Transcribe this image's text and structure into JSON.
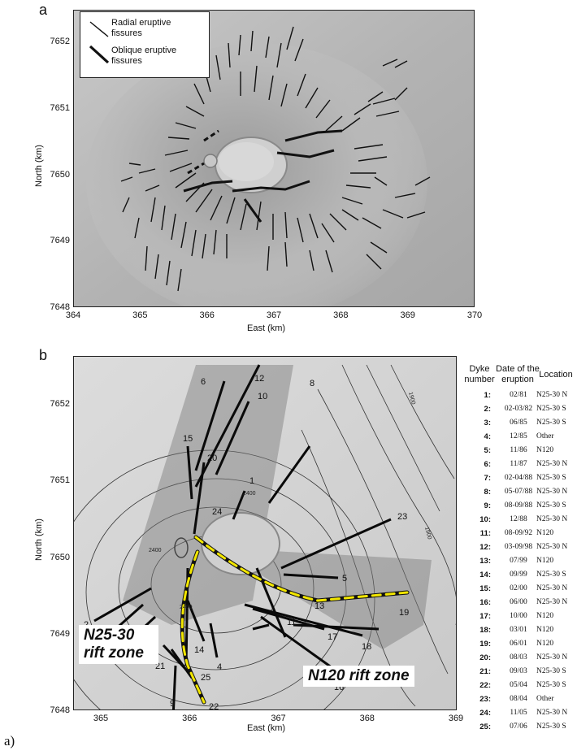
{
  "panel_a": {
    "letter": "a",
    "legend": {
      "radial": "Radial eruptive fissures",
      "oblique": "Oblique eruptive fissures"
    },
    "x_ticks": [
      "364",
      "365",
      "366",
      "367",
      "368",
      "369",
      "370"
    ],
    "y_ticks": [
      "7652",
      "7651",
      "7650",
      "7649",
      "7648"
    ],
    "xlabel": "East (km)",
    "ylabel": "North (km)"
  },
  "panel_b": {
    "letter": "b",
    "x_ticks": [
      "365",
      "366",
      "367",
      "368",
      "369"
    ],
    "y_ticks": [
      "7652",
      "7651",
      "7650",
      "7649",
      "7648"
    ],
    "xlabel": "East (km)",
    "ylabel": "North (km)",
    "rift_n25": "N25-30 rift zone",
    "rift_n120": "N120 rift zone",
    "contour_labels": [
      "2400",
      "2400",
      "2400",
      "1900",
      "1900"
    ],
    "dyke_labels": [
      "1",
      "2",
      "3",
      "4",
      "5",
      "6",
      "7",
      "8",
      "9",
      "10",
      "11",
      "12",
      "13",
      "14",
      "15",
      "16",
      "17",
      "18",
      "19",
      "20",
      "21",
      "22",
      "23",
      "24",
      "25"
    ]
  },
  "table": {
    "headers": {
      "dyke": "Dyke number",
      "date": "Date of the eruption",
      "location": "Location"
    },
    "rows": [
      {
        "n": "1:",
        "d": "02/81",
        "l": "N25-30 N"
      },
      {
        "n": "2:",
        "d": "02-03/82",
        "l": "N25-30 S"
      },
      {
        "n": "3:",
        "d": "06/85",
        "l": "N25-30 S"
      },
      {
        "n": "4:",
        "d": "12/85",
        "l": "Other"
      },
      {
        "n": "5:",
        "d": "11/86",
        "l": "N120"
      },
      {
        "n": "6:",
        "d": "11/87",
        "l": "N25-30 N"
      },
      {
        "n": "7:",
        "d": "02-04/88",
        "l": "N25-30 S"
      },
      {
        "n": "8:",
        "d": "05-07/88",
        "l": "N25-30 N"
      },
      {
        "n": "9:",
        "d": "08-09/88",
        "l": "N25-30 S"
      },
      {
        "n": "10:",
        "d": "12/88",
        "l": "N25-30 N"
      },
      {
        "n": "11:",
        "d": "08-09/92",
        "l": "N120"
      },
      {
        "n": "12:",
        "d": "03-09/98",
        "l": "N25-30 N"
      },
      {
        "n": "13:",
        "d": "07/99",
        "l": "N120"
      },
      {
        "n": "14:",
        "d": "09/99",
        "l": "N25-30 S"
      },
      {
        "n": "15:",
        "d": "02/00",
        "l": "N25-30 N"
      },
      {
        "n": "16:",
        "d": "06/00",
        "l": "N25-30 N"
      },
      {
        "n": "17:",
        "d": "10/00",
        "l": "N120"
      },
      {
        "n": "18:",
        "d": "03/01",
        "l": "N120"
      },
      {
        "n": "19:",
        "d": "06/01",
        "l": "N120"
      },
      {
        "n": "20:",
        "d": "08/03",
        "l": "N25-30 N"
      },
      {
        "n": "21:",
        "d": "09/03",
        "l": "N25-30 S"
      },
      {
        "n": "22:",
        "d": "05/04",
        "l": "N25-30 S"
      },
      {
        "n": "23:",
        "d": "08/04",
        "l": "Other"
      },
      {
        "n": "24:",
        "d": "11/05",
        "l": "N25-30 N"
      },
      {
        "n": "25:",
        "d": "07/06",
        "l": "N25-30 S"
      }
    ]
  },
  "caption": "a)"
}
